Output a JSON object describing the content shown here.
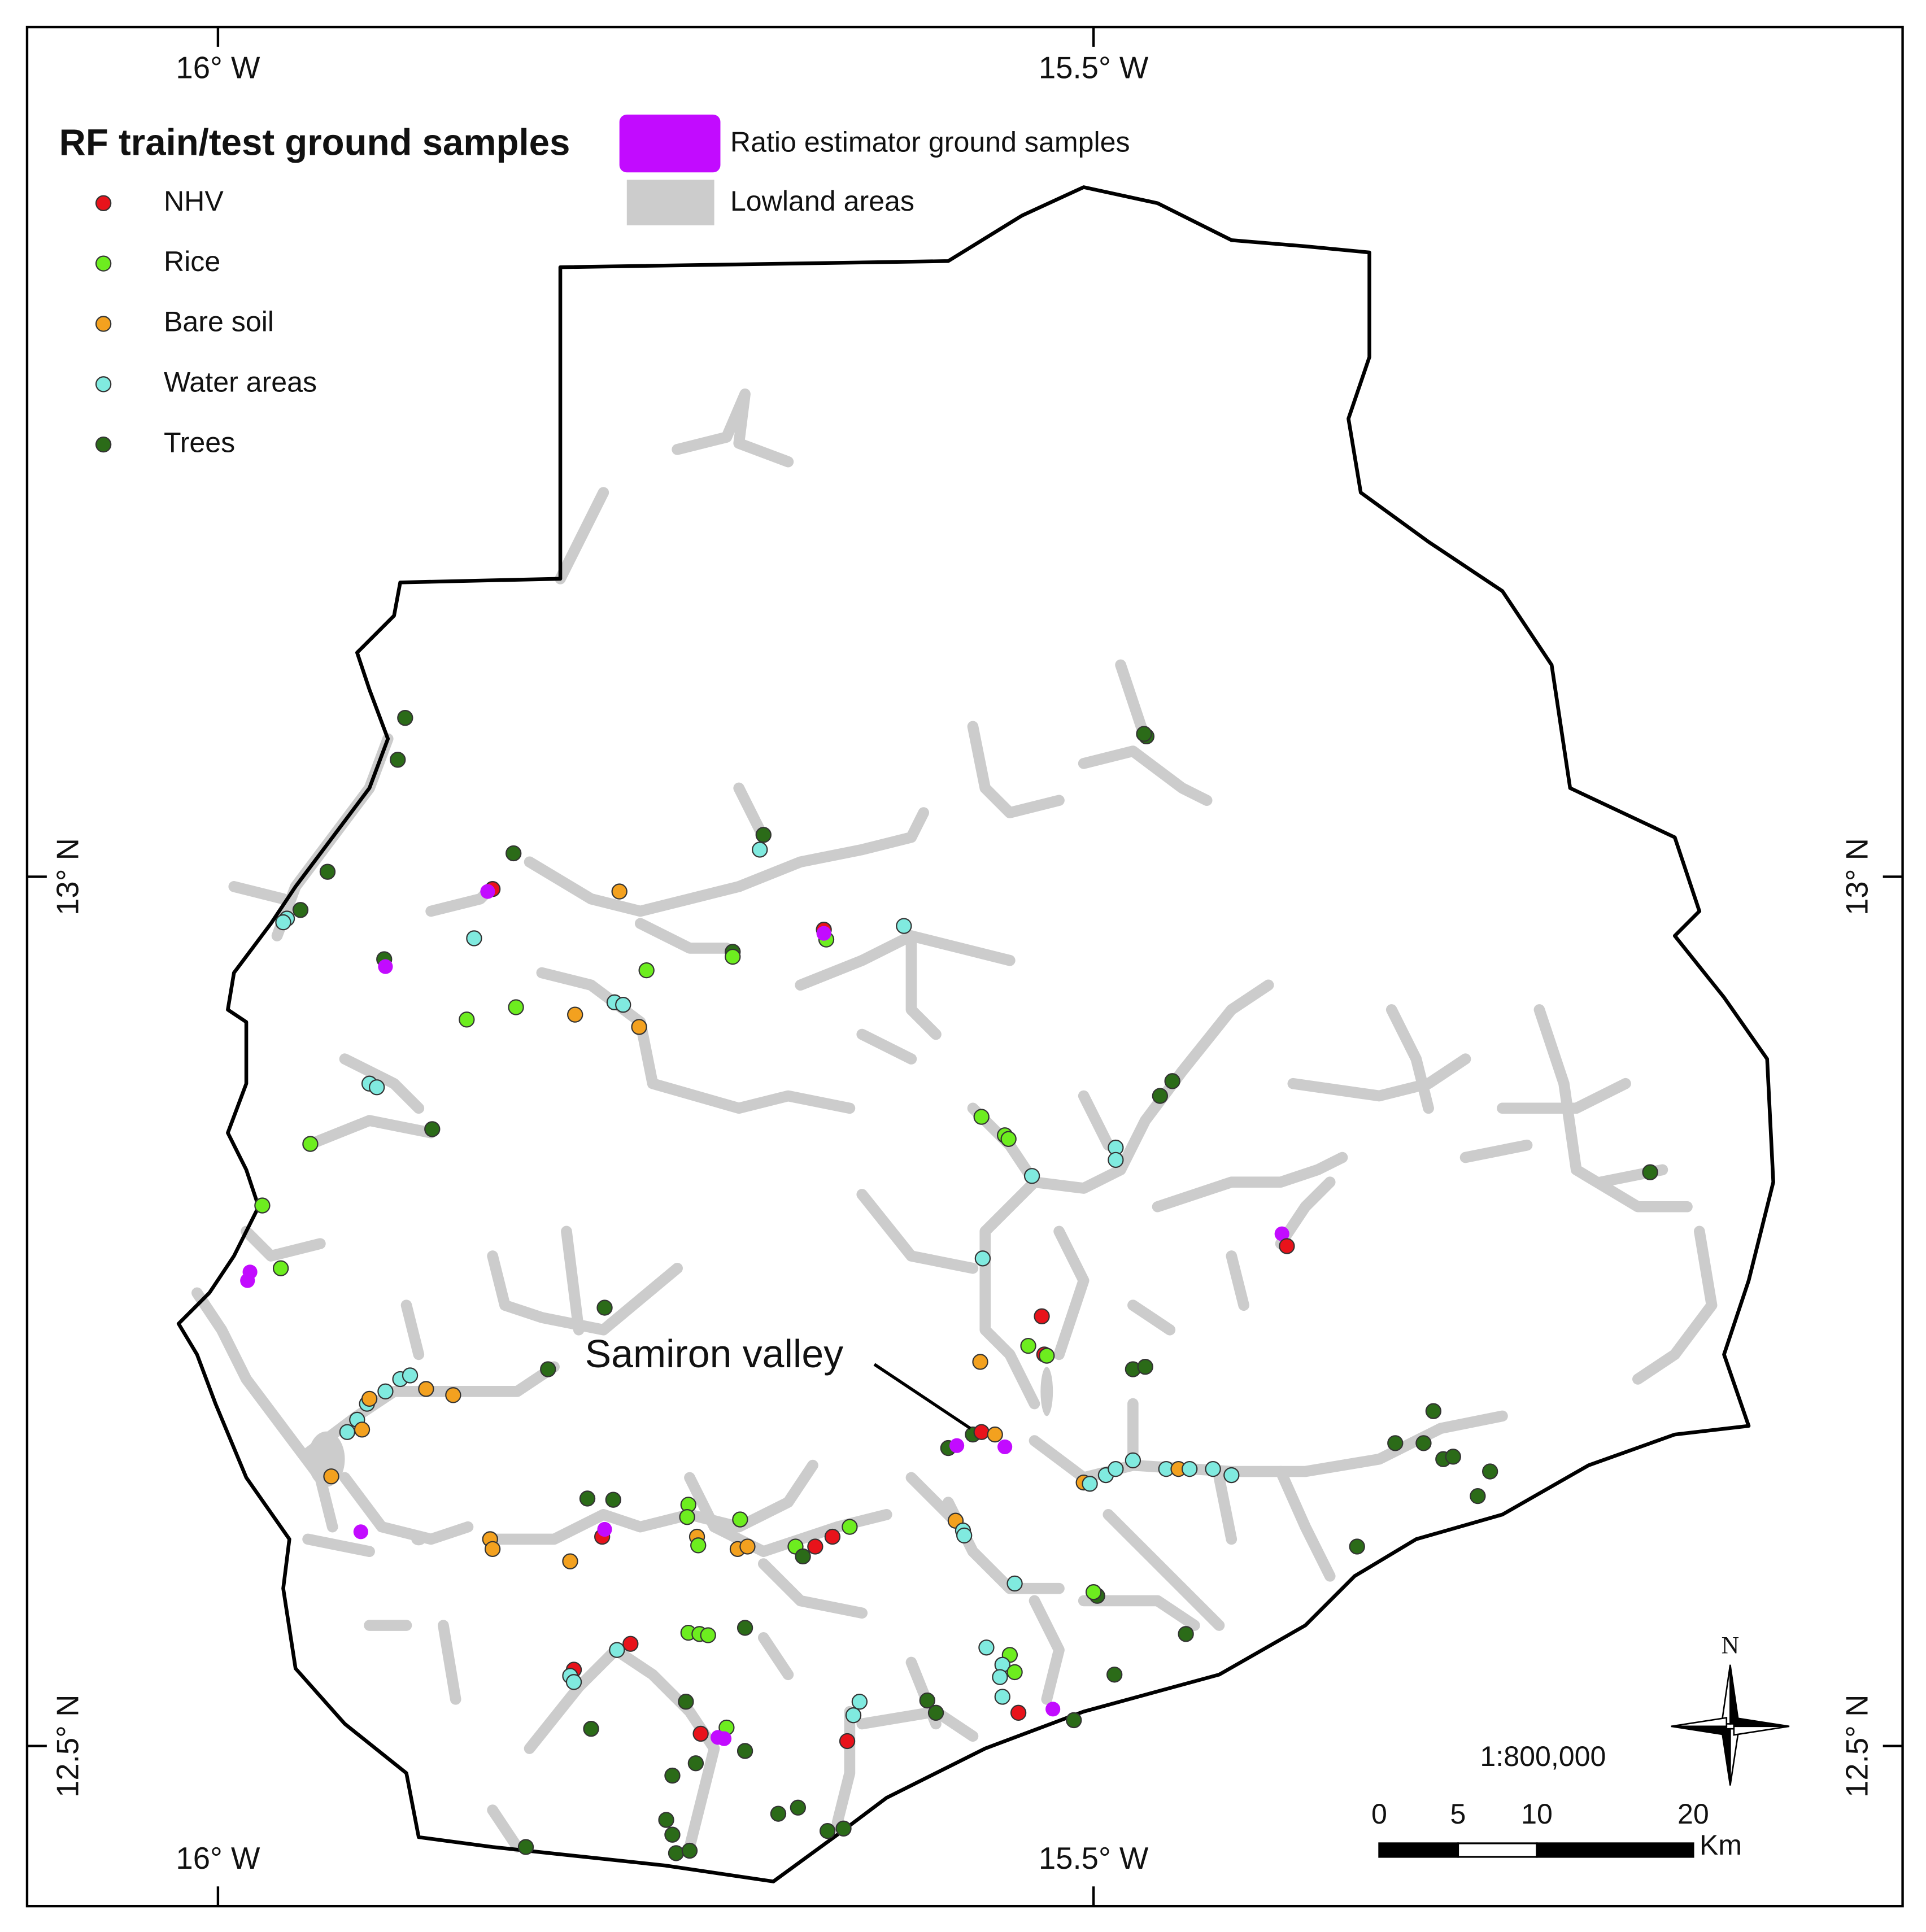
{
  "title": "RF train/test ground samples",
  "legend": {
    "items": [
      {
        "label": "NHV",
        "color": "#e8131b"
      },
      {
        "label": "Rice",
        "color": "#6ded1f"
      },
      {
        "label": "Bare soil",
        "color": "#f3a11f"
      },
      {
        "label": "Water areas",
        "color": "#80eadf"
      },
      {
        "label": "Trees",
        "color": "#2b6b18"
      }
    ],
    "extra": [
      {
        "label": "Ratio estimator ground samples",
        "color": "#c20bff"
      },
      {
        "label": "Lowland areas",
        "color": "#cccccc"
      }
    ]
  },
  "graticule": {
    "top": [
      "16° W",
      "15.5° W"
    ],
    "bottom": [
      "16° W",
      "15.5° W"
    ],
    "left": [
      "13° N",
      "12.5° N"
    ],
    "right": [
      "13° N",
      "12.5° N"
    ]
  },
  "annotation": "Samiron valley",
  "scale": {
    "ratio": "1:800,000",
    "ticks": [
      "0",
      "5",
      "10",
      "20"
    ],
    "unit": "Km"
  },
  "north": "N"
}
